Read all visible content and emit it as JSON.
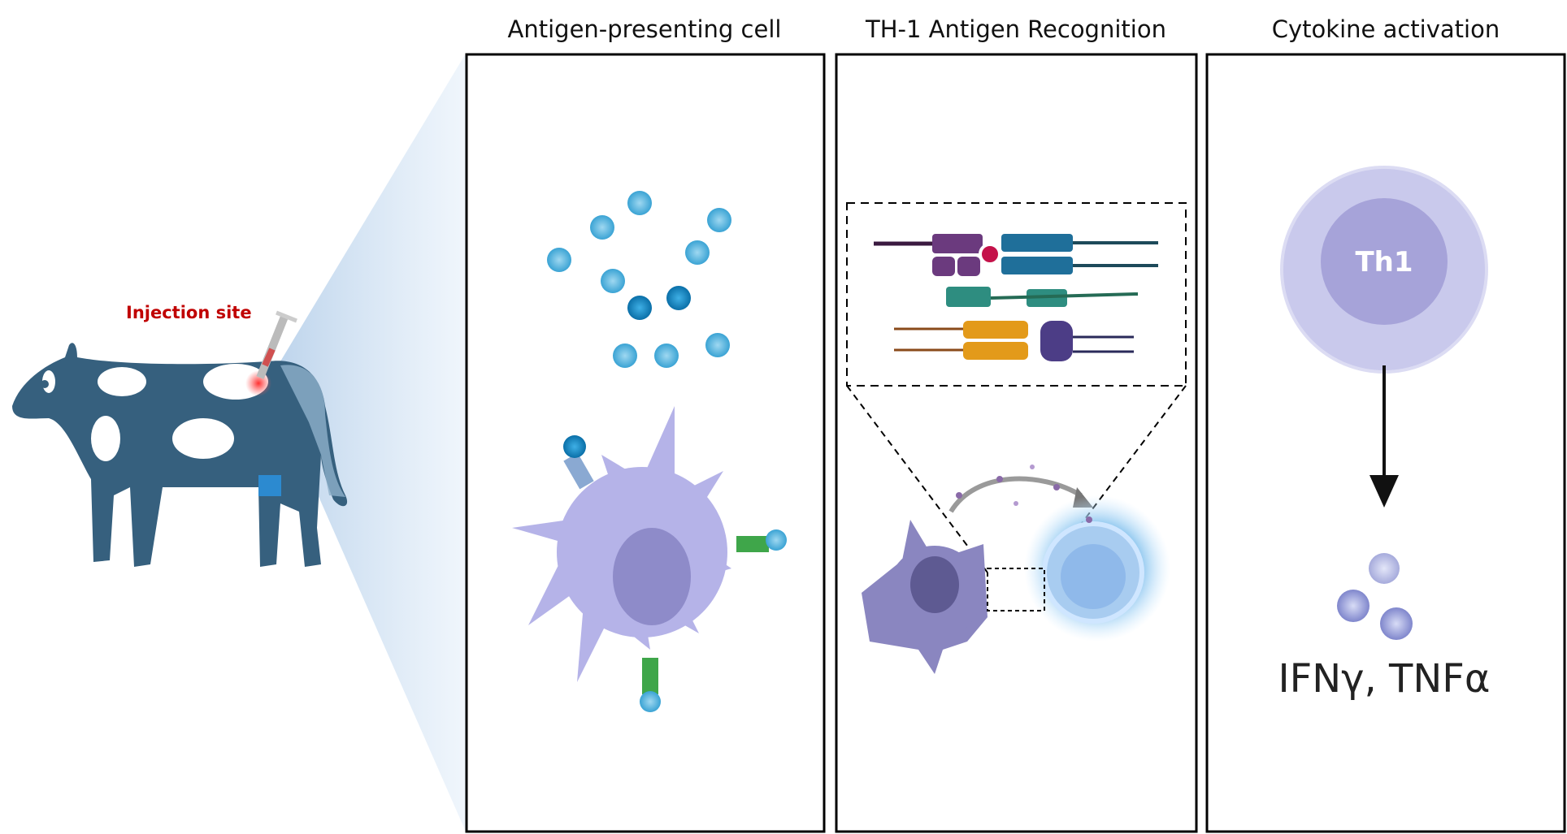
{
  "panels": [
    {
      "title": "Antigen-presenting cell"
    },
    {
      "title": "TH-1 Antigen Recognition"
    },
    {
      "title": "Cytokine activation"
    }
  ],
  "cow": {
    "label": "Injection site",
    "color": "#36607e",
    "label_color": "#c00000"
  },
  "th1_cell": {
    "label": "Th1",
    "outer_color": "#c9c9ec",
    "inner_color": "#a6a3d9"
  },
  "cytokines": {
    "label": "IFNγ, TNFα"
  },
  "colors": {
    "antigen": "#4ab3e0",
    "apc": "#b5b3e8",
    "cone": "#cfe0f2"
  }
}
